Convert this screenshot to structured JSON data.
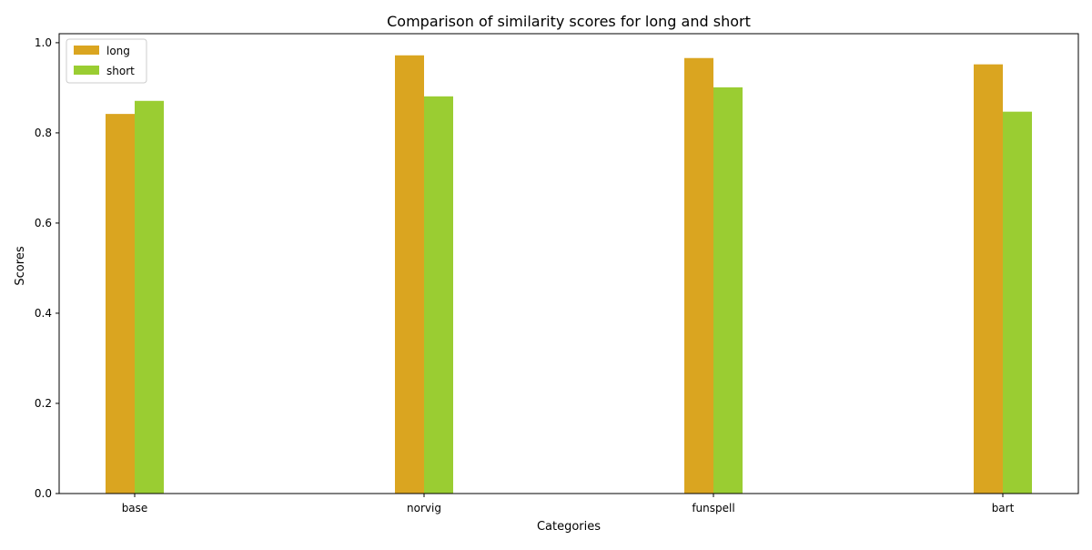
{
  "chart_data": {
    "type": "bar",
    "title": "Comparison of similarity scores for long and short",
    "xlabel": "Categories",
    "ylabel": "Scores",
    "categories": [
      "base",
      "norvig",
      "funspell",
      "bart"
    ],
    "series": [
      {
        "name": "long",
        "color": "#DAA520",
        "values": [
          0.842,
          0.972,
          0.966,
          0.952
        ]
      },
      {
        "name": "short",
        "color": "#9ACD32",
        "values": [
          0.871,
          0.881,
          0.901,
          0.847
        ]
      }
    ],
    "ylim": [
      0,
      1.02
    ],
    "yticks": [
      "0.0",
      "0.2",
      "0.4",
      "0.6",
      "0.8",
      "1.0"
    ],
    "grid": false,
    "legend_position": "top-left"
  }
}
